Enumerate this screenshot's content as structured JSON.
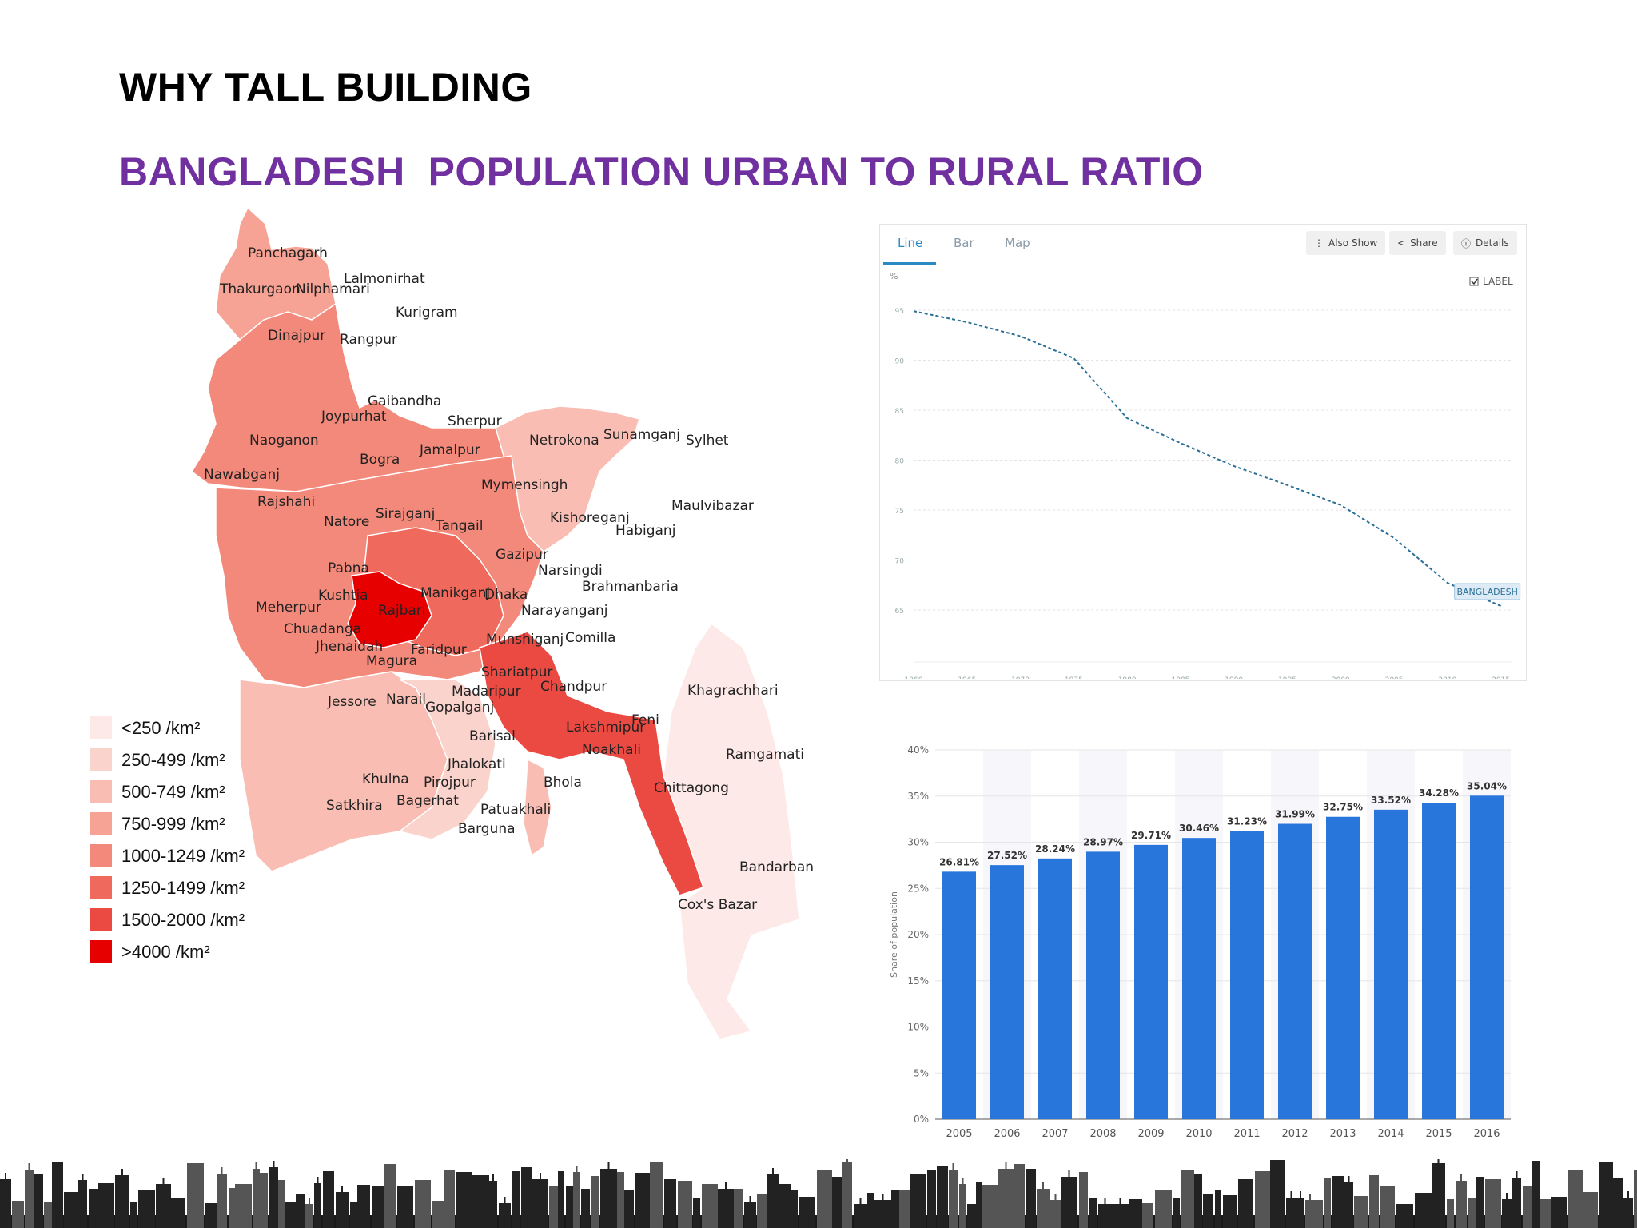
{
  "slide": {
    "heading": "WHY TALL BUILDING",
    "subheading": "BANGLADESH  POPULATION URBAN TO RURAL RATIO"
  },
  "map": {
    "districts": [
      "Panchagarh",
      "Lalmonirhat",
      "Thakurgaon",
      "Nilphamari",
      "Kurigram",
      "Dinajpur",
      "Rangpur",
      "Gaibandha",
      "Joypurhat",
      "Sherpur",
      "Netrokona",
      "Sunamganj",
      "Sylhet",
      "Naoganon",
      "Bogra",
      "Jamalpur",
      "Nawabganj",
      "Mymensingh",
      "Rajshahi",
      "Maulvibazar",
      "Natore",
      "Sirajganj",
      "Tangail",
      "Kishoreganj",
      "Habiganj",
      "Gazipur",
      "Narsingdi",
      "Pabna",
      "Brahmanbaria",
      "Kushtia",
      "Manikganj",
      "Dhaka",
      "Meherpur",
      "Rajbari",
      "Narayanganj",
      "Chuadanga",
      "Munshiganj",
      "Comilla",
      "Jhenaidah",
      "Faridpur",
      "Magura",
      "Shariatpur",
      "Chandpur",
      "Khagrachhari",
      "Narail",
      "Madaripur",
      "Jessore",
      "Gopalganj",
      "Feni",
      "Lakshmipur",
      "Barisal",
      "Noakhali",
      "Ramgamati",
      "Jhalokati",
      "Khulna",
      "Pirojpur",
      "Bhola",
      "Chittagong",
      "Satkhira",
      "Bagerhat",
      "Patuakhali",
      "Barguna",
      "Bandarban",
      "Cox's Bazar"
    ],
    "legend": [
      {
        "label": "<250 /km²",
        "color": "#fde9e7"
      },
      {
        "label": "250-499 /km²",
        "color": "#fbd3cd"
      },
      {
        "label": "500-749 /km²",
        "color": "#f9bdb3"
      },
      {
        "label": "750-999 /km²",
        "color": "#f6a294"
      },
      {
        "label": "1000-1249 /km²",
        "color": "#f3897a"
      },
      {
        "label": "1250-1499 /km²",
        "color": "#ef6a5c"
      },
      {
        "label": "1500-2000 /km²",
        "color": "#eb4a42"
      },
      {
        "label": ">4000 /km²",
        "color": "#e60000"
      }
    ]
  },
  "line_panel": {
    "tabs": [
      {
        "label": "Line"
      },
      {
        "label": "Bar"
      },
      {
        "label": "Map"
      }
    ],
    "buttons": {
      "also_show": "Also Show",
      "share": "Share",
      "details": "Details"
    },
    "unit_label": "%",
    "label_toggle": "LABEL",
    "series_label": "BANGLADESH",
    "icons": [
      "more-vertical-icon",
      "share-icon",
      "info-icon",
      "checkbox-icon"
    ],
    "colors": {
      "line": "#2a6f97",
      "accent": "#2b8ac4"
    }
  },
  "chart_data": [
    {
      "type": "line",
      "x": [
        1960,
        1965,
        1970,
        1975,
        1980,
        1985,
        1990,
        1995,
        2000,
        2005,
        2010,
        2015
      ],
      "series": [
        {
          "name": "BANGLADESH",
          "values": [
            94.9,
            93.8,
            92.4,
            90.2,
            84.2,
            81.7,
            79.4,
            77.5,
            75.5,
            72.2,
            67.7,
            65.4
          ]
        }
      ],
      "x_ticks": [
        1960,
        1965,
        1970,
        1975,
        1980,
        1985,
        1990,
        1995,
        2000,
        2005,
        2010,
        2015
      ],
      "y_ticks": [
        65,
        70,
        75,
        80,
        85,
        90,
        95
      ],
      "ylabel": "%",
      "xlim": [
        1960,
        2016
      ],
      "ylim": [
        61,
        97
      ],
      "grid": true
    },
    {
      "type": "bar",
      "categories": [
        "2005",
        "2006",
        "2007",
        "2008",
        "2009",
        "2010",
        "2011",
        "2012",
        "2013",
        "2014",
        "2015",
        "2016"
      ],
      "values": [
        26.81,
        27.52,
        28.24,
        28.97,
        29.71,
        30.46,
        31.23,
        31.99,
        32.75,
        33.52,
        34.28,
        35.04
      ],
      "value_labels": [
        "26.81%",
        "27.52%",
        "28.24%",
        "28.97%",
        "29.71%",
        "30.46%",
        "31.23%",
        "31.99%",
        "32.75%",
        "33.52%",
        "34.28%",
        "35.04%"
      ],
      "y_ticks": [
        "0%",
        "5%",
        "10%",
        "15%",
        "20%",
        "25%",
        "30%",
        "35%",
        "40%"
      ],
      "ylabel": "Share of population",
      "ylim": [
        0,
        40
      ],
      "grid": true,
      "bar_color": "#2876dc"
    }
  ]
}
